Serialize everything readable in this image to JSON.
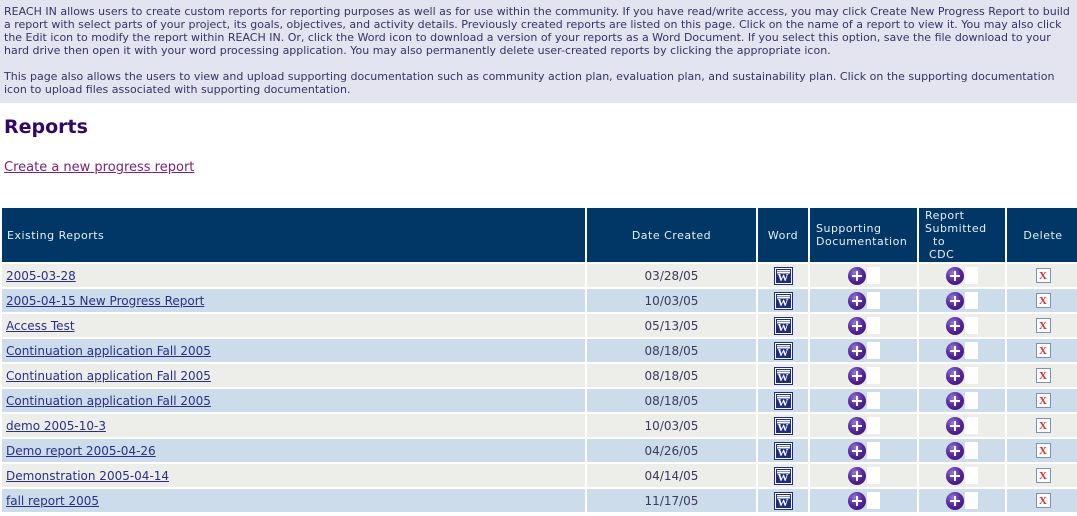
{
  "intro": {
    "paragraph1": "REACH IN allows users to create custom reports for reporting purposes as well as for use within the community. If you have read/write access, you may click Create New Progress Report to build a report with select parts of your project, its goals, objectives, and activity details. Previously created reports are listed on this page. Click on the name of a report to view it. You may also click the Edit icon to modify the report within REACH IN. Or, click the Word icon to download a version of your reports as a Word Document. If you select this option, save the file download to your hard drive then open it with your word processing application. You may also permanently delete user-created reports by clicking the appropriate icon.",
    "paragraph2": "This page also allows the users to view and upload supporting documentation such as community action plan, evaluation plan, and sustainability plan. Click on the supporting documentation icon to upload files associated with supporting documentation."
  },
  "page": {
    "title": "Reports",
    "create_link": "Create a new progress report"
  },
  "table": {
    "headers": [
      "Existing Reports",
      "Date Created",
      "Word",
      "Supporting Documentation",
      "Report\nSubmitted\n  to\n CDC",
      "Delete"
    ],
    "rows": [
      {
        "name": "2005-03-28",
        "date": "03/28/05"
      },
      {
        "name": "2005-04-15 New Progress Report",
        "date": "10/03/05"
      },
      {
        "name": "Access Test",
        "date": "05/13/05"
      },
      {
        "name": "Continuation application Fall 2005",
        "date": "08/18/05"
      },
      {
        "name": "Continuation application Fall 2005",
        "date": "08/18/05"
      },
      {
        "name": "Continuation application Fall 2005",
        "date": "08/18/05"
      },
      {
        "name": "demo 2005-10-3",
        "date": "10/03/05"
      },
      {
        "name": "Demo report 2005-04-26",
        "date": "04/26/05"
      },
      {
        "name": "Demonstration 2005-04-14",
        "date": "04/14/05"
      },
      {
        "name": "fall report 2005",
        "date": "11/17/05"
      }
    ]
  },
  "icons": {
    "word_glyph": "W",
    "delete_glyph": "X",
    "word_icon": "word-document-download-icon",
    "supporting_icon": "supporting-documentation-upload-icon",
    "cdc_icon": "report-submitted-to-cdc-icon",
    "delete_icon": "delete-report-icon"
  },
  "colors": {
    "intro_bg": "#E4E4F0",
    "intro_text": "#333366",
    "heading": "#32076B",
    "create_link": "#7B217B",
    "header_bg": "#003767",
    "header_text": "#E8EEF4",
    "row_base": "#EDEDEA",
    "row_alt": "#CDDCEB",
    "report_link": "#2A2F85",
    "word_navy": "#202C84",
    "orb_purple": "#5B2AA0",
    "delete_red": "#E0282E"
  }
}
